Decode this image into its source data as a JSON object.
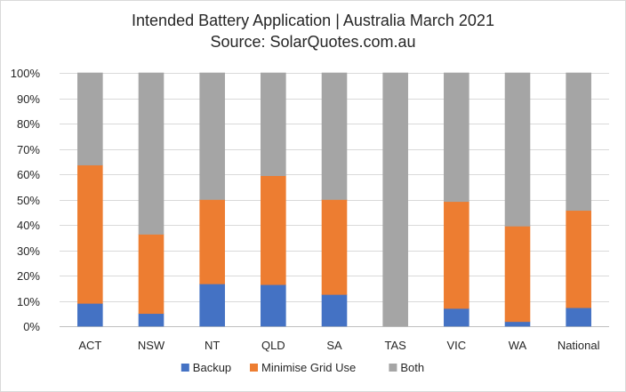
{
  "chart_data": {
    "type": "bar",
    "stacked": true,
    "title": "Intended Battery Application | Australia March 2021",
    "subtitle": "Source: SolarQuotes.com.au",
    "categories": [
      "ACT",
      "NSW",
      "NT",
      "QLD",
      "SA",
      "TAS",
      "VIC",
      "WA",
      "National"
    ],
    "series": [
      {
        "name": "Backup",
        "color": "#4472C4",
        "values": [
          9,
          5,
          16.7,
          16.4,
          12.5,
          0,
          7,
          1.8,
          7.3
        ]
      },
      {
        "name": "Minimise Grid Use",
        "color": "#ED7D31",
        "values": [
          54.6,
          31.3,
          33.3,
          43,
          37.5,
          0,
          42.2,
          37.7,
          38.4
        ]
      },
      {
        "name": "Both",
        "color": "#A5A5A5",
        "values": [
          36.4,
          63.7,
          50,
          40.6,
          50,
          100,
          50.8,
          60.5,
          54.3
        ]
      }
    ],
    "y_ticks": [
      "0%",
      "10%",
      "20%",
      "30%",
      "40%",
      "50%",
      "60%",
      "70%",
      "80%",
      "90%",
      "100%"
    ],
    "ylim": [
      0,
      100
    ],
    "grid": true,
    "legend_position": "bottom"
  }
}
